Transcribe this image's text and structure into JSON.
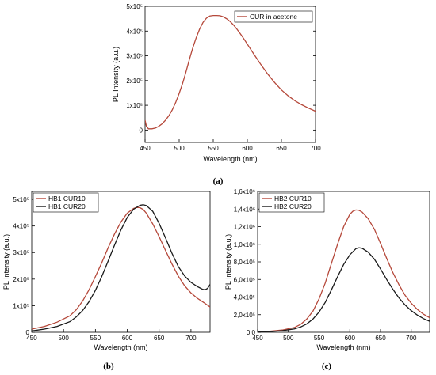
{
  "chart_data": [
    {
      "type": "line",
      "panel_label": "(a)",
      "xlabel": "Wavelength (nm)",
      "ylabel": "PL Intensity (a.u.)",
      "xlim": [
        450,
        700
      ],
      "ylim": [
        -50000,
        500000
      ],
      "x_ticks": [
        450,
        500,
        550,
        600,
        650,
        700
      ],
      "x_tick_labels": [
        "450",
        "500",
        "550",
        "600",
        "650",
        "700"
      ],
      "y_ticks": [
        0,
        100000,
        200000,
        300000,
        400000,
        500000
      ],
      "y_tick_labels": [
        "0",
        "1x10⁵",
        "2x10⁵",
        "3x10⁵",
        "4x10⁵",
        "5x10⁵"
      ],
      "legend_position": "top-right",
      "series": [
        {
          "name": "CUR in acetone",
          "color": "#b5483a",
          "x": [
            450,
            452,
            455,
            460,
            465,
            470,
            475,
            480,
            485,
            490,
            495,
            500,
            505,
            510,
            515,
            520,
            525,
            530,
            535,
            540,
            545,
            550,
            555,
            560,
            565,
            570,
            575,
            580,
            585,
            590,
            595,
            600,
            610,
            620,
            630,
            640,
            650,
            660,
            670,
            680,
            690,
            700
          ],
          "y": [
            40000,
            15000,
            5000,
            5000,
            8000,
            15000,
            25000,
            40000,
            58000,
            82000,
            112000,
            148000,
            188000,
            235000,
            285000,
            332000,
            373000,
            408000,
            435000,
            452000,
            461000,
            463000,
            463000,
            462000,
            457000,
            449000,
            438000,
            424000,
            407000,
            388000,
            368000,
            347000,
            305000,
            264000,
            226000,
            192000,
            162000,
            138000,
            118000,
            102000,
            88000,
            76000
          ]
        }
      ]
    },
    {
      "type": "line",
      "panel_label": "(b)",
      "xlabel": "Wavelength (nm)",
      "ylabel": "PL Intensity (a.u.)",
      "xlim": [
        450,
        730
      ],
      "ylim": [
        0,
        530000
      ],
      "x_ticks": [
        450,
        500,
        550,
        600,
        650,
        700
      ],
      "x_tick_labels": [
        "450",
        "500",
        "550",
        "600",
        "650",
        "700"
      ],
      "y_ticks": [
        0,
        100000,
        200000,
        300000,
        400000,
        500000
      ],
      "y_tick_labels": [
        "0",
        "1x10⁵",
        "2x10⁵",
        "3x10⁵",
        "4x10⁵",
        "5x10⁵"
      ],
      "legend_position": "top-left",
      "series": [
        {
          "name": "HB1 CUR10",
          "color": "#b5483a",
          "x": [
            450,
            470,
            490,
            510,
            520,
            530,
            540,
            550,
            560,
            570,
            580,
            590,
            600,
            610,
            615,
            620,
            625,
            630,
            640,
            650,
            660,
            670,
            680,
            690,
            700,
            710,
            720,
            730
          ],
          "y": [
            12000,
            22000,
            38000,
            62000,
            85000,
            118000,
            160000,
            210000,
            262000,
            318000,
            370000,
            415000,
            448000,
            466000,
            470000,
            469000,
            462000,
            448000,
            408000,
            360000,
            308000,
            258000,
            212000,
            175000,
            148000,
            128000,
            112000,
            95000
          ]
        },
        {
          "name": "HB1 CUR20",
          "color": "#1a1a1a",
          "x": [
            450,
            470,
            490,
            510,
            520,
            530,
            540,
            550,
            560,
            570,
            580,
            590,
            600,
            610,
            620,
            625,
            630,
            640,
            650,
            660,
            670,
            680,
            690,
            700,
            710,
            718,
            722,
            726,
            730
          ],
          "y": [
            5000,
            12000,
            22000,
            40000,
            58000,
            82000,
            115000,
            158000,
            210000,
            268000,
            328000,
            385000,
            432000,
            463000,
            478000,
            480000,
            477000,
            455000,
            410000,
            355000,
            298000,
            248000,
            212000,
            188000,
            172000,
            162000,
            160000,
            165000,
            180000
          ]
        }
      ]
    },
    {
      "type": "line",
      "panel_label": "(c)",
      "xlabel": "Wavelength (nm)",
      "ylabel": "PL Intensity (a.u.)",
      "xlim": [
        450,
        730
      ],
      "ylim": [
        0,
        1600000
      ],
      "x_ticks": [
        450,
        500,
        550,
        600,
        650,
        700
      ],
      "x_tick_labels": [
        "450",
        "500",
        "550",
        "600",
        "650",
        "700"
      ],
      "y_ticks": [
        0,
        200000,
        400000,
        600000,
        800000,
        1000000,
        1200000,
        1400000,
        1600000
      ],
      "y_tick_labels": [
        "0,0",
        "2,0x10⁵",
        "4,0x10⁵",
        "6,0x10⁵",
        "8,0x10⁵",
        "1,0x10⁶",
        "1,2x10⁶",
        "1,4x10⁶",
        "1,6x10⁶"
      ],
      "legend_position": "top-left",
      "series": [
        {
          "name": "HB2 CUR10",
          "color": "#b5483a",
          "x": [
            450,
            470,
            490,
            510,
            520,
            530,
            540,
            550,
            560,
            570,
            580,
            590,
            600,
            605,
            610,
            615,
            620,
            630,
            640,
            650,
            660,
            670,
            680,
            690,
            700,
            710,
            720,
            730
          ],
          "y": [
            5000,
            12000,
            25000,
            55000,
            90000,
            150000,
            240000,
            380000,
            560000,
            780000,
            1000000,
            1200000,
            1340000,
            1375000,
            1390000,
            1385000,
            1365000,
            1290000,
            1170000,
            1010000,
            840000,
            680000,
            540000,
            420000,
            330000,
            260000,
            205000,
            165000
          ]
        },
        {
          "name": "HB2 CUR20",
          "color": "#1a1a1a",
          "x": [
            450,
            470,
            490,
            510,
            520,
            530,
            540,
            550,
            560,
            570,
            580,
            590,
            600,
            610,
            615,
            620,
            630,
            640,
            650,
            660,
            670,
            680,
            690,
            700,
            710,
            720,
            730
          ],
          "y": [
            3000,
            8000,
            18000,
            38000,
            60000,
            95000,
            150000,
            230000,
            340000,
            480000,
            630000,
            770000,
            880000,
            950000,
            960000,
            955000,
            910000,
            830000,
            720000,
            600000,
            490000,
            390000,
            310000,
            245000,
            195000,
            155000,
            125000
          ]
        }
      ]
    }
  ]
}
